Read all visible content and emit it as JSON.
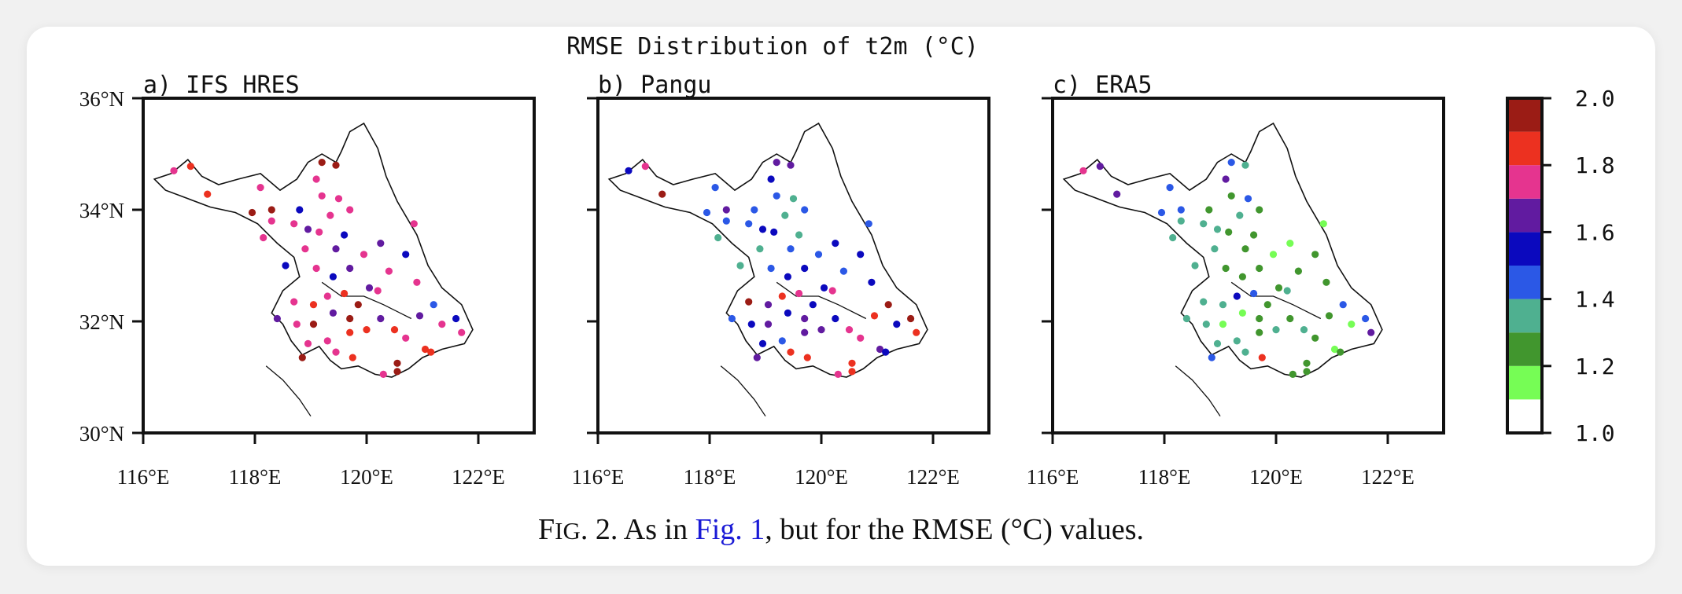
{
  "chart_data": {
    "type": "scatter",
    "title": "RMSE Distribution of t2m (°C)",
    "panels": [
      {
        "label": "a) IFS HRES"
      },
      {
        "label": "b) Pangu"
      },
      {
        "label": "c) ERA5"
      }
    ],
    "x_ticks": [
      {
        "v": 116,
        "label": "116°E"
      },
      {
        "v": 118,
        "label": "118°E"
      },
      {
        "v": 120,
        "label": "120°E"
      },
      {
        "v": 122,
        "label": "122°E"
      }
    ],
    "y_ticks": [
      {
        "v": 30,
        "label": "30°N"
      },
      {
        "v": 32,
        "label": "32°N"
      },
      {
        "v": 34,
        "label": "34°N"
      },
      {
        "v": 36,
        "label": "36°N"
      }
    ],
    "xlim": [
      116,
      123
    ],
    "ylim": [
      30,
      36
    ],
    "colorbar": {
      "bins": [
        1.0,
        1.1,
        1.2,
        1.3,
        1.4,
        1.5,
        1.6,
        1.7,
        1.8,
        1.9,
        2.0
      ],
      "colors": [
        "#ffffff",
        "#76fd55",
        "#41962e",
        "#4fb090",
        "#2b58e6",
        "#0b09be",
        "#611ba0",
        "#e5348f",
        "#ec3120",
        "#9b1c15"
      ],
      "tick_labels": [
        {
          "v": 1.0,
          "label": "1.0"
        },
        {
          "v": 1.2,
          "label": "1.2"
        },
        {
          "v": 1.4,
          "label": "1.4"
        },
        {
          "v": 1.6,
          "label": "1.6"
        },
        {
          "v": 1.8,
          "label": "1.8"
        },
        {
          "v": 2.0,
          "label": "2.0"
        }
      ],
      "extra_color": "#ee9440"
    },
    "stations": [
      [
        116.55,
        34.7
      ],
      [
        116.85,
        34.78
      ],
      [
        117.15,
        34.28
      ],
      [
        117.95,
        33.95
      ],
      [
        118.3,
        34.0
      ],
      [
        118.1,
        34.4
      ],
      [
        118.3,
        33.8
      ],
      [
        118.15,
        33.5
      ],
      [
        118.55,
        33.0
      ],
      [
        118.7,
        33.75
      ],
      [
        118.9,
        33.3
      ],
      [
        118.95,
        33.65
      ],
      [
        119.1,
        34.55
      ],
      [
        119.2,
        34.85
      ],
      [
        119.45,
        34.8
      ],
      [
        119.2,
        34.25
      ],
      [
        119.35,
        33.9
      ],
      [
        119.7,
        34.0
      ],
      [
        119.15,
        33.6
      ],
      [
        119.45,
        33.3
      ],
      [
        119.6,
        33.55
      ],
      [
        119.1,
        32.95
      ],
      [
        119.4,
        32.8
      ],
      [
        119.7,
        32.95
      ],
      [
        119.95,
        33.2
      ],
      [
        120.25,
        33.4
      ],
      [
        120.05,
        32.6
      ],
      [
        119.3,
        32.45
      ],
      [
        119.6,
        32.5
      ],
      [
        119.85,
        32.3
      ],
      [
        120.2,
        32.55
      ],
      [
        118.4,
        32.05
      ],
      [
        118.7,
        32.35
      ],
      [
        119.05,
        32.3
      ],
      [
        119.4,
        32.15
      ],
      [
        119.7,
        32.05
      ],
      [
        118.75,
        31.95
      ],
      [
        119.05,
        31.95
      ],
      [
        119.3,
        31.65
      ],
      [
        119.7,
        31.8
      ],
      [
        120.0,
        31.85
      ],
      [
        120.25,
        32.05
      ],
      [
        118.95,
        31.6
      ],
      [
        119.45,
        31.45
      ],
      [
        119.75,
        31.35
      ],
      [
        118.85,
        31.35
      ],
      [
        120.5,
        31.85
      ],
      [
        120.7,
        31.7
      ],
      [
        120.95,
        32.1
      ],
      [
        121.2,
        32.3
      ],
      [
        121.6,
        32.05
      ],
      [
        121.7,
        31.8
      ],
      [
        121.35,
        31.95
      ],
      [
        121.05,
        31.5
      ],
      [
        121.15,
        31.45
      ],
      [
        120.55,
        31.25
      ],
      [
        120.3,
        31.05
      ],
      [
        120.55,
        31.1
      ],
      [
        120.85,
        33.75
      ],
      [
        120.4,
        32.9
      ],
      [
        120.9,
        32.7
      ],
      [
        120.7,
        33.2
      ],
      [
        119.5,
        34.2
      ],
      [
        118.8,
        34.0
      ]
    ],
    "values": {
      "a": [
        1.7,
        1.82,
        1.82,
        1.9,
        1.9,
        1.7,
        1.7,
        1.7,
        1.5,
        1.7,
        1.75,
        1.6,
        1.75,
        1.95,
        1.95,
        1.7,
        1.7,
        1.7,
        1.75,
        1.6,
        1.55,
        1.75,
        1.55,
        1.6,
        1.75,
        1.65,
        1.6,
        1.75,
        1.85,
        1.9,
        1.75,
        1.65,
        1.75,
        1.85,
        1.65,
        1.95,
        1.7,
        1.95,
        1.75,
        1.85,
        1.85,
        1.65,
        1.75,
        1.75,
        1.82,
        1.95,
        1.85,
        1.75,
        1.65,
        1.45,
        1.55,
        1.75,
        1.75,
        1.82,
        1.82,
        1.95,
        1.75,
        1.9,
        1.75,
        1.75,
        1.75,
        1.55,
        1.75,
        1.55
      ],
      "b": [
        1.55,
        1.75,
        1.95,
        1.45,
        1.65,
        1.45,
        1.45,
        1.35,
        1.35,
        1.45,
        1.35,
        1.55,
        1.55,
        1.65,
        1.65,
        1.45,
        1.35,
        1.45,
        1.55,
        1.45,
        1.35,
        1.45,
        1.55,
        1.55,
        1.45,
        1.55,
        1.55,
        1.82,
        1.75,
        1.55,
        1.75,
        1.45,
        1.95,
        1.65,
        1.55,
        1.65,
        1.55,
        1.65,
        1.45,
        1.65,
        1.65,
        1.55,
        1.55,
        1.85,
        1.82,
        1.65,
        1.75,
        1.75,
        1.85,
        1.95,
        1.95,
        1.82,
        1.55,
        1.65,
        1.55,
        1.85,
        1.75,
        1.85,
        1.45,
        1.45,
        1.55,
        1.55,
        1.35,
        1.45
      ],
      "c": [
        1.75,
        1.65,
        1.65,
        1.45,
        1.45,
        1.45,
        1.35,
        1.35,
        1.35,
        1.35,
        1.35,
        1.35,
        1.65,
        1.45,
        1.35,
        1.25,
        1.35,
        1.25,
        1.25,
        1.25,
        1.25,
        1.25,
        1.25,
        1.25,
        1.15,
        1.15,
        1.25,
        1.55,
        1.45,
        1.25,
        1.35,
        1.35,
        1.35,
        1.35,
        1.15,
        1.25,
        1.35,
        1.15,
        1.35,
        1.25,
        1.35,
        1.25,
        1.35,
        1.35,
        1.85,
        1.45,
        1.35,
        1.25,
        1.25,
        1.45,
        1.45,
        1.65,
        1.15,
        1.15,
        1.25,
        1.25,
        1.25,
        1.25,
        1.15,
        1.25,
        1.25,
        1.25,
        1.45,
        1.25
      ]
    }
  },
  "caption": {
    "prefix_initial": "F",
    "prefix_smallcaps": "IG",
    "prefix_rest": ". 2. As in ",
    "link": "Fig. 1",
    "suffix": ", but for the RMSE (°C) values."
  }
}
